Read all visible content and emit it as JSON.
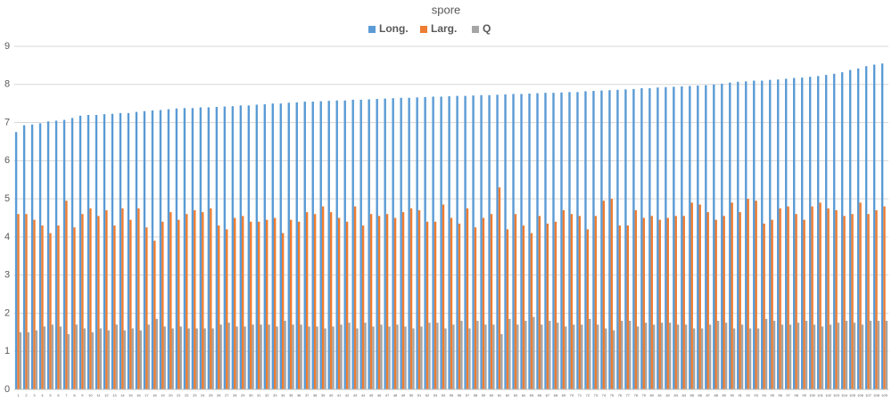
{
  "chart_data": {
    "type": "bar",
    "title": "spore",
    "categories": [
      1,
      2,
      3,
      4,
      5,
      6,
      7,
      8,
      9,
      10,
      11,
      12,
      13,
      14,
      15,
      16,
      17,
      18,
      19,
      20,
      21,
      22,
      23,
      24,
      25,
      26,
      27,
      28,
      29,
      30,
      31,
      32,
      33,
      34,
      35,
      36,
      37,
      38,
      39,
      40,
      41,
      42,
      43,
      44,
      45,
      46,
      47,
      48,
      49,
      50,
      51,
      52,
      53,
      54,
      55,
      56,
      57,
      58,
      59,
      60,
      61,
      62,
      63,
      64,
      65,
      66,
      67,
      68,
      69,
      70,
      71,
      72,
      73,
      74,
      75,
      76,
      77,
      78,
      79,
      80,
      81,
      82,
      83,
      84,
      85,
      86,
      87,
      88,
      89,
      90,
      91,
      92,
      93,
      94,
      95,
      96,
      97,
      98,
      99,
      100,
      101,
      102,
      103,
      104,
      105,
      106,
      107,
      108,
      109
    ],
    "series": [
      {
        "name": "Long.",
        "color": "#5b9bd5",
        "values": [
          6.75,
          6.93,
          6.95,
          6.98,
          7.03,
          7.05,
          7.07,
          7.12,
          7.18,
          7.2,
          7.2,
          7.22,
          7.23,
          7.25,
          7.25,
          7.28,
          7.3,
          7.32,
          7.33,
          7.35,
          7.37,
          7.38,
          7.38,
          7.4,
          7.4,
          7.41,
          7.42,
          7.43,
          7.45,
          7.45,
          7.47,
          7.48,
          7.5,
          7.5,
          7.52,
          7.53,
          7.55,
          7.55,
          7.56,
          7.57,
          7.58,
          7.58,
          7.6,
          7.6,
          7.61,
          7.62,
          7.63,
          7.64,
          7.65,
          7.65,
          7.66,
          7.67,
          7.68,
          7.68,
          7.69,
          7.7,
          7.7,
          7.71,
          7.72,
          7.72,
          7.73,
          7.74,
          7.75,
          7.75,
          7.76,
          7.77,
          7.78,
          7.78,
          7.79,
          7.8,
          7.8,
          7.82,
          7.83,
          7.84,
          7.85,
          7.86,
          7.87,
          7.88,
          7.9,
          7.9,
          7.92,
          7.93,
          7.94,
          7.95,
          7.96,
          7.97,
          7.98,
          8.0,
          8.02,
          8.05,
          8.07,
          8.08,
          8.1,
          8.1,
          8.12,
          8.13,
          8.15,
          8.17,
          8.18,
          8.2,
          8.22,
          8.25,
          8.28,
          8.32,
          8.38,
          8.42,
          8.48,
          8.52,
          8.55
        ]
      },
      {
        "name": "Larg.",
        "color": "#ed7d31",
        "values": [
          4.6,
          4.6,
          4.45,
          4.3,
          4.1,
          4.3,
          4.95,
          4.25,
          4.6,
          4.75,
          4.55,
          4.7,
          4.3,
          4.75,
          4.45,
          4.75,
          4.25,
          3.9,
          4.4,
          4.65,
          4.45,
          4.6,
          4.7,
          4.65,
          4.75,
          4.3,
          4.2,
          4.5,
          4.55,
          4.4,
          4.4,
          4.45,
          4.5,
          4.1,
          4.45,
          4.4,
          4.65,
          4.6,
          4.8,
          4.65,
          4.5,
          4.4,
          4.8,
          4.3,
          4.6,
          4.55,
          4.6,
          4.5,
          4.65,
          4.75,
          4.7,
          4.4,
          4.4,
          4.85,
          4.5,
          4.35,
          4.75,
          4.25,
          4.5,
          4.6,
          5.3,
          4.2,
          4.6,
          4.3,
          4.1,
          4.55,
          4.35,
          4.4,
          4.7,
          4.6,
          4.55,
          4.2,
          4.55,
          4.95,
          5.0,
          4.3,
          4.3,
          4.7,
          4.5,
          4.55,
          4.45,
          4.5,
          4.55,
          4.55,
          4.9,
          4.85,
          4.65,
          4.45,
          4.55,
          4.9,
          4.65,
          5.0,
          4.95,
          4.35,
          4.45,
          4.75,
          4.8,
          4.6,
          4.45,
          4.8,
          4.9,
          4.75,
          4.7,
          4.55,
          4.6,
          4.9,
          4.6,
          4.7,
          4.8
        ]
      },
      {
        "name": "Q",
        "color": "#a5a5a5",
        "values": [
          1.5,
          1.5,
          1.55,
          1.65,
          1.7,
          1.65,
          1.45,
          1.7,
          1.6,
          1.5,
          1.6,
          1.55,
          1.7,
          1.55,
          1.6,
          1.55,
          1.7,
          1.85,
          1.65,
          1.6,
          1.65,
          1.6,
          1.6,
          1.6,
          1.6,
          1.7,
          1.75,
          1.65,
          1.65,
          1.7,
          1.7,
          1.7,
          1.65,
          1.8,
          1.7,
          1.7,
          1.65,
          1.65,
          1.6,
          1.65,
          1.7,
          1.75,
          1.6,
          1.75,
          1.65,
          1.7,
          1.65,
          1.7,
          1.65,
          1.6,
          1.65,
          1.75,
          1.75,
          1.6,
          1.7,
          1.8,
          1.6,
          1.8,
          1.7,
          1.7,
          1.45,
          1.85,
          1.7,
          1.8,
          1.9,
          1.7,
          1.8,
          1.75,
          1.65,
          1.7,
          1.7,
          1.85,
          1.7,
          1.6,
          1.55,
          1.8,
          1.8,
          1.65,
          1.75,
          1.7,
          1.75,
          1.75,
          1.7,
          1.7,
          1.6,
          1.6,
          1.7,
          1.8,
          1.75,
          1.6,
          1.7,
          1.6,
          1.6,
          1.85,
          1.8,
          1.7,
          1.7,
          1.75,
          1.8,
          1.7,
          1.65,
          1.7,
          1.75,
          1.8,
          1.75,
          1.7,
          1.8,
          1.8,
          1.8
        ]
      }
    ],
    "ylim": [
      0,
      9
    ],
    "yticks": [
      0,
      1,
      2,
      3,
      4,
      5,
      6,
      7,
      8,
      9
    ],
    "grid": true,
    "legend": "top"
  }
}
